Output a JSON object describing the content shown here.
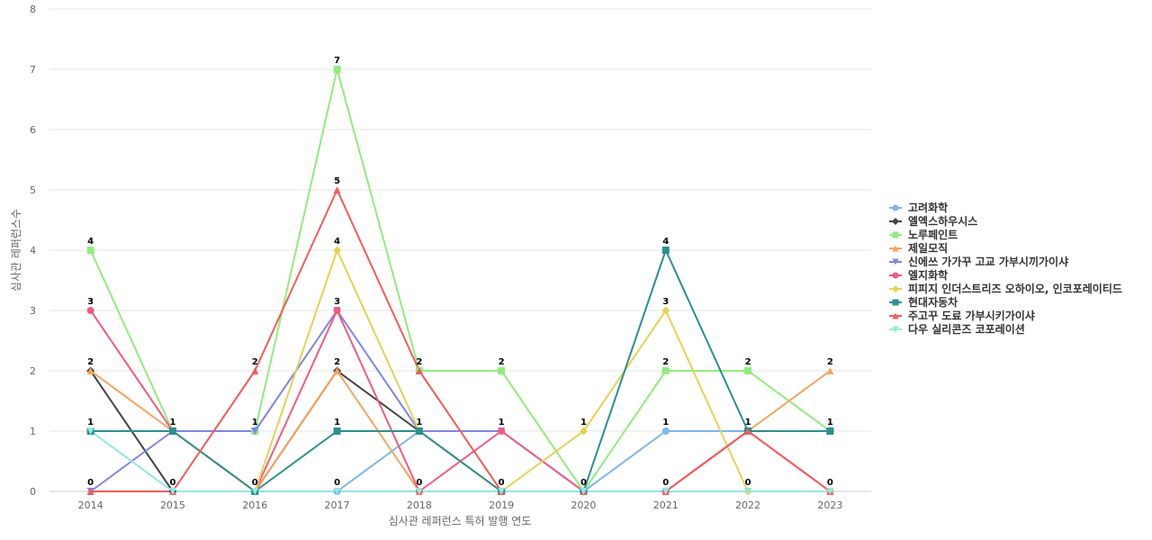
{
  "chart_data": {
    "type": "line",
    "xlabel": "심사관 레퍼런스 특허 발행 연도",
    "ylabel": "심사관 레퍼런스수",
    "x": [
      "2014",
      "2015",
      "2016",
      "2017",
      "2018",
      "2019",
      "2020",
      "2021",
      "2022",
      "2023"
    ],
    "ylim": [
      0,
      8
    ],
    "yticks": [
      0,
      1,
      2,
      3,
      4,
      5,
      6,
      7,
      8
    ],
    "grid": true,
    "legend_position": "right",
    "series": [
      {
        "name": "고려화학",
        "color": "#7cb5ec",
        "marker": "circle",
        "values": [
          1,
          1,
          0,
          0,
          1,
          1,
          0,
          1,
          1,
          1
        ]
      },
      {
        "name": "엘엑스하우시스",
        "color": "#434348",
        "marker": "diamond",
        "values": [
          2,
          0,
          0,
          2,
          1,
          0,
          0,
          0,
          1,
          1
        ]
      },
      {
        "name": "노루페인트",
        "color": "#90ed7d",
        "marker": "square",
        "values": [
          4,
          1,
          1,
          7,
          2,
          2,
          0,
          2,
          2,
          1
        ]
      },
      {
        "name": "제일모직",
        "color": "#f7a35c",
        "marker": "triangle",
        "values": [
          2,
          1,
          0,
          2,
          0,
          0,
          0,
          0,
          1,
          2
        ]
      },
      {
        "name": "신에쓰 가가꾸 고교 가부시끼가이샤",
        "color": "#8085e9",
        "marker": "triangle-down",
        "values": [
          0,
          1,
          1,
          3,
          1,
          1,
          0,
          0,
          0,
          0
        ]
      },
      {
        "name": "엘지화학",
        "color": "#f15c80",
        "marker": "circle",
        "values": [
          3,
          1,
          0,
          3,
          0,
          1,
          0,
          0,
          1,
          0
        ]
      },
      {
        "name": "피피지 인더스트리즈 오하이오, 인코포레이티드",
        "color": "#e4d354",
        "marker": "diamond",
        "values": [
          1,
          1,
          0,
          4,
          1,
          0,
          1,
          3,
          0,
          0
        ]
      },
      {
        "name": "현대자동차",
        "color": "#2b908f",
        "marker": "square",
        "values": [
          1,
          1,
          0,
          1,
          1,
          0,
          0,
          4,
          1,
          1
        ]
      },
      {
        "name": "주고꾸 도료 가부시키가이샤",
        "color": "#f45b5b",
        "marker": "triangle",
        "values": [
          0,
          0,
          2,
          5,
          2,
          0,
          0,
          0,
          1,
          0
        ]
      },
      {
        "name": "다우 실리콘즈 코포레이션",
        "color": "#91e8e1",
        "marker": "triangle-down",
        "values": [
          1,
          0,
          0,
          0,
          0,
          0,
          0,
          0,
          0,
          0
        ]
      }
    ],
    "data_labels": [
      {
        "x": "2014",
        "y": 4,
        "text": "4"
      },
      {
        "x": "2014",
        "y": 3,
        "text": "3"
      },
      {
        "x": "2014",
        "y": 2,
        "text": "2"
      },
      {
        "x": "2014",
        "y": 1,
        "text": "1"
      },
      {
        "x": "2014",
        "y": 0,
        "text": "0"
      },
      {
        "x": "2015",
        "y": 1,
        "text": "1"
      },
      {
        "x": "2015",
        "y": 0,
        "text": "0"
      },
      {
        "x": "2016",
        "y": 2,
        "text": "2"
      },
      {
        "x": "2016",
        "y": 1,
        "text": "1"
      },
      {
        "x": "2016",
        "y": 0,
        "text": "0"
      },
      {
        "x": "2017",
        "y": 7,
        "text": "7"
      },
      {
        "x": "2017",
        "y": 5,
        "text": "5"
      },
      {
        "x": "2017",
        "y": 4,
        "text": "4"
      },
      {
        "x": "2017",
        "y": 3,
        "text": "3"
      },
      {
        "x": "2017",
        "y": 2,
        "text": "2"
      },
      {
        "x": "2017",
        "y": 1,
        "text": "1"
      },
      {
        "x": "2017",
        "y": 0,
        "text": "0"
      },
      {
        "x": "2018",
        "y": 2,
        "text": "2"
      },
      {
        "x": "2018",
        "y": 1,
        "text": "1"
      },
      {
        "x": "2018",
        "y": 0,
        "text": "0"
      },
      {
        "x": "2019",
        "y": 2,
        "text": "2"
      },
      {
        "x": "2019",
        "y": 1,
        "text": "1"
      },
      {
        "x": "2019",
        "y": 0,
        "text": "0"
      },
      {
        "x": "2020",
        "y": 1,
        "text": "1"
      },
      {
        "x": "2020",
        "y": 0,
        "text": "0"
      },
      {
        "x": "2021",
        "y": 4,
        "text": "4"
      },
      {
        "x": "2021",
        "y": 3,
        "text": "3"
      },
      {
        "x": "2021",
        "y": 2,
        "text": "2"
      },
      {
        "x": "2021",
        "y": 1,
        "text": "1"
      },
      {
        "x": "2021",
        "y": 0,
        "text": "0"
      },
      {
        "x": "2022",
        "y": 2,
        "text": "2"
      },
      {
        "x": "2022",
        "y": 1,
        "text": "1"
      },
      {
        "x": "2022",
        "y": 0,
        "text": "0"
      },
      {
        "x": "2023",
        "y": 2,
        "text": "2"
      },
      {
        "x": "2023",
        "y": 1,
        "text": "1"
      },
      {
        "x": "2023",
        "y": 0,
        "text": "0"
      }
    ]
  }
}
